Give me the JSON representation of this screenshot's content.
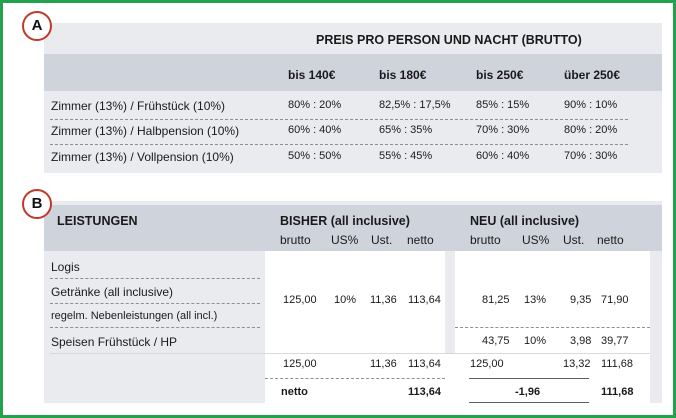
{
  "sectionA": {
    "badge": "A",
    "title": "PREIS PRO PERSON UND NACHT (BRUTTO)",
    "columns": [
      "bis 140€",
      "bis 180€",
      "bis 250€",
      "über 250€"
    ],
    "rows": [
      {
        "label": "Zimmer (13%) / Frühstück (10%)",
        "values": [
          "80% : 20%",
          "82,5% : 17,5%",
          "85% : 15%",
          "90% : 10%"
        ]
      },
      {
        "label": "Zimmer (13%) / Halbpension (10%)",
        "values": [
          "60% : 40%",
          "65% : 35%",
          "70% : 30%",
          "80% : 20%"
        ]
      },
      {
        "label": "Zimmer (13%) / Vollpension (10%)",
        "values": [
          "50% : 50%",
          "55% : 45%",
          "60% : 40%",
          "70% : 30%"
        ]
      }
    ]
  },
  "sectionB": {
    "badge": "B",
    "leistungen": "LEISTUNGEN",
    "bisher": "BISHER (all inclusive)",
    "neu": "NEU (all inclusive)",
    "subheads": [
      "brutto",
      "US%",
      "Ust.",
      "netto"
    ],
    "items": [
      "Logis",
      "Getränke (all inclusive)",
      "regelm. Nebenleistungen (all incl.)",
      "Speisen Frühstück / HP"
    ],
    "bisher_values": [
      "125,00",
      "10%",
      "11,36",
      "113,64"
    ],
    "neu_group1": [
      "81,25",
      "13%",
      "9,35",
      "71,90"
    ],
    "neu_group2": [
      "43,75",
      "10%",
      "3,98",
      "39,77"
    ],
    "sum_row": {
      "bisher_brutto": "125,00",
      "bisher_ust": "11,36",
      "bisher_netto": "113,64",
      "neu_brutto": "125,00",
      "neu_ust": "13,32",
      "neu_netto": "111,68"
    },
    "netto_row": {
      "label": "netto",
      "bisher_netto": "113,64",
      "diff": "-1,96",
      "neu_netto": "111,68"
    }
  }
}
